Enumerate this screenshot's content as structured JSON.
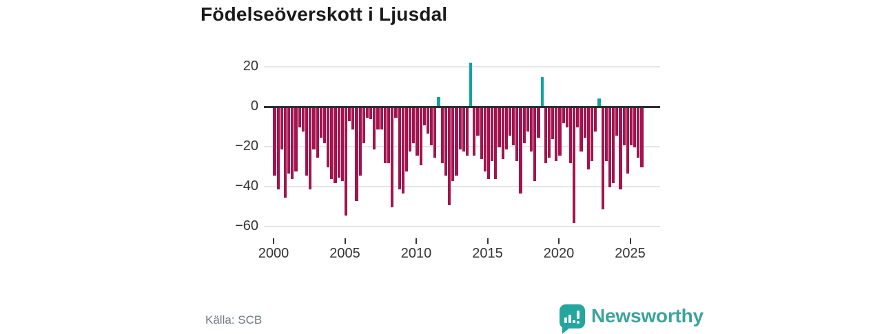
{
  "title": "Födelseöverskott i Ljusdal",
  "source": "Källa: SCB",
  "brand": {
    "name": "Newsworthy"
  },
  "colors": {
    "negative_bar": "#a3134d",
    "positive_bar": "#0ba6a1",
    "axis_line": "#2e2e2e",
    "gridline": "#e6e6e6",
    "tick_text": "#333333",
    "title_text": "#1a1a1a",
    "muted_text": "#6f7780",
    "brand_teal": "#23a69e"
  },
  "chart_data": {
    "type": "bar",
    "title": "Födelseöverskott i Ljusdal",
    "xlabel": "",
    "ylabel": "",
    "period": "quarterly",
    "start_year": 2000,
    "ylim": [
      -62,
      24
    ],
    "grid": true,
    "y_ticks": [
      20,
      0,
      -20,
      -40,
      -60
    ],
    "y_tick_labels": [
      "20",
      "0",
      "−20",
      "−40",
      "−60"
    ],
    "x_tick_years": [
      2000,
      2005,
      2010,
      2015,
      2020,
      2025
    ],
    "x_tick_labels": [
      "2000",
      "2005",
      "2010",
      "2015",
      "2020",
      "2025"
    ],
    "values": [
      -34,
      -41,
      -21,
      -45,
      -33,
      -36,
      -32,
      -10,
      -12,
      -34,
      -41,
      -21,
      -25,
      -15,
      -18,
      -30,
      -36,
      -38,
      -35,
      -37,
      -54,
      -7,
      -11,
      -47,
      -34,
      -18,
      -5,
      -6,
      -21,
      -11,
      -11,
      -28,
      -28,
      -50,
      -5,
      -41,
      -43,
      -32,
      -22,
      -18,
      -24,
      -29,
      -9,
      -13,
      -19,
      -25,
      5,
      -28,
      -34,
      -49,
      -37,
      -34,
      -21,
      -22,
      -24,
      22,
      -24,
      -14,
      -26,
      -32,
      -36,
      -27,
      -36,
      -20,
      -26,
      -21,
      -14,
      -19,
      -27,
      -43,
      -18,
      -12,
      -22,
      -37,
      -15,
      15,
      -28,
      -25,
      -16,
      -27,
      -24,
      -8,
      -10,
      -28,
      -58,
      -10,
      -22,
      -15,
      -31,
      -27,
      -12,
      4,
      -51,
      -27,
      -40,
      -38,
      -14,
      -41,
      -19,
      -33,
      -19,
      -20,
      -25,
      -30
    ]
  }
}
